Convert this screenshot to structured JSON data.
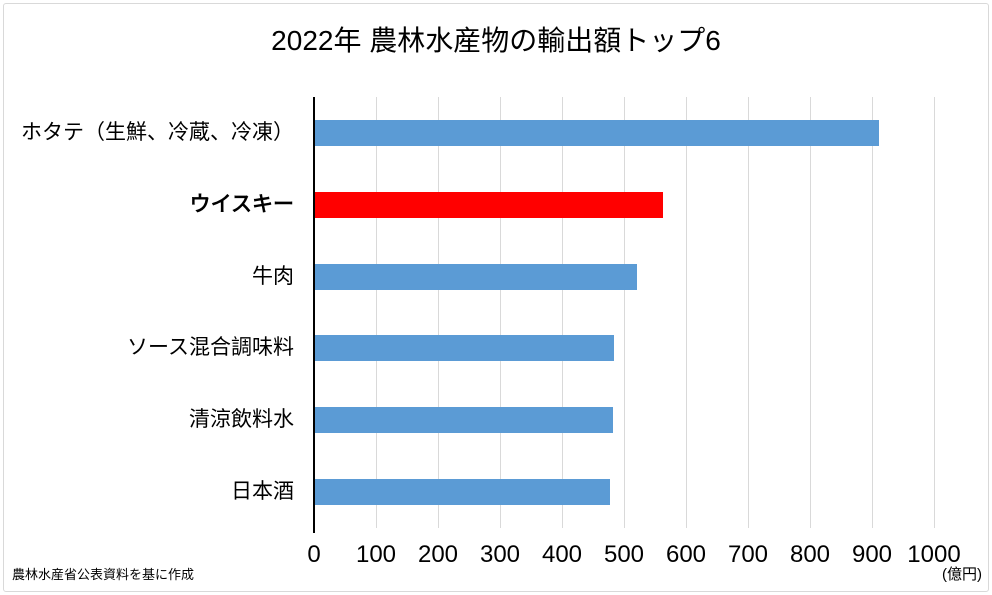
{
  "chart_data": {
    "type": "bar",
    "orientation": "horizontal",
    "title": "2022年 農林水産物の輸出額トップ6",
    "categories": [
      "ホタテ（生鮮、冷蔵、冷凍）",
      "ウイスキー",
      "牛肉",
      "ソース混合調味料",
      "清涼飲料水",
      "日本酒"
    ],
    "values": [
      910,
      561,
      520,
      483,
      480,
      475
    ],
    "series": [
      {
        "label": "ホタテ（生鮮、冷蔵、冷凍）",
        "value": 910,
        "color": "#5B9BD5",
        "emphasis": false
      },
      {
        "label": "ウイスキー",
        "value": 561,
        "color": "#FF0000",
        "emphasis": true
      },
      {
        "label": "牛肉",
        "value": 520,
        "color": "#5B9BD5",
        "emphasis": false
      },
      {
        "label": "ソース混合調味料",
        "value": 483,
        "color": "#5B9BD5",
        "emphasis": false
      },
      {
        "label": "清涼飲料水",
        "value": 480,
        "color": "#5B9BD5",
        "emphasis": false
      },
      {
        "label": "日本酒",
        "value": 475,
        "color": "#5B9BD5",
        "emphasis": false
      }
    ],
    "xlim": [
      0,
      1000
    ],
    "xticks": [
      0,
      100,
      200,
      300,
      400,
      500,
      600,
      700,
      800,
      900,
      1000
    ],
    "unit_label": "(億円)",
    "xlabel": "",
    "ylabel": "",
    "grid": true,
    "legend": "none",
    "bar_color_default": "#5B9BD5",
    "highlight_color": "#FF0000",
    "gridline_color": "#D9D9D9",
    "axis_line_color": "#000000"
  },
  "footer": {
    "source_note": "農林水産省公表資料を基に作成"
  }
}
